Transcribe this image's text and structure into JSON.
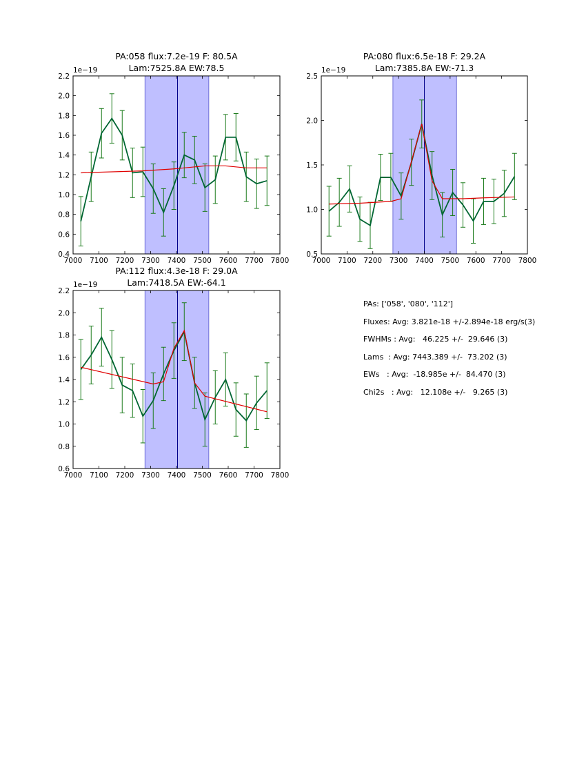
{
  "colors": {
    "data_line": "#006633",
    "errorbar": "#1a7a1a",
    "model_line": "#e00000",
    "band_fill": "#bfbfff",
    "band_edge": "#5555cc",
    "vline": "#00008b"
  },
  "chart_data": [
    {
      "type": "line",
      "title_line1": "PA:058 flux:7.2e-19 F: 80.5A",
      "title_line2": "Lam:7525.8A EW:78.5",
      "exponent_label": "1e−19",
      "xlim": [
        7000,
        7800
      ],
      "ylim": [
        0.4,
        2.2
      ],
      "xticks": [
        7000,
        7100,
        7200,
        7300,
        7400,
        7500,
        7600,
        7700,
        7800
      ],
      "yticks": [
        0.4,
        0.6,
        0.8,
        1.0,
        1.2,
        1.4,
        1.6,
        1.8,
        2.0,
        2.2
      ],
      "ytick_labels": [
        "0.4",
        "0.6",
        "0.8",
        "1.0",
        "1.2",
        "1.4",
        "1.6",
        "1.8",
        "2.0",
        "2.2"
      ],
      "band": [
        7278,
        7525
      ],
      "vline": 7404,
      "x": [
        7030,
        7070,
        7110,
        7150,
        7190,
        7230,
        7270,
        7310,
        7350,
        7390,
        7430,
        7470,
        7510,
        7550,
        7590,
        7630,
        7670,
        7710,
        7750
      ],
      "y": [
        0.73,
        1.18,
        1.62,
        1.77,
        1.6,
        1.22,
        1.23,
        1.06,
        0.82,
        1.09,
        1.4,
        1.35,
        1.07,
        1.15,
        1.58,
        1.58,
        1.18,
        1.11,
        1.14
      ],
      "yerr": [
        0.25,
        0.25,
        0.25,
        0.25,
        0.25,
        0.25,
        0.25,
        0.25,
        0.24,
        0.24,
        0.23,
        0.24,
        0.24,
        0.24,
        0.23,
        0.24,
        0.25,
        0.25,
        0.25
      ],
      "model_x": [
        7030,
        7270,
        7390,
        7510,
        7590,
        7670,
        7750
      ],
      "model_y": [
        1.22,
        1.24,
        1.26,
        1.29,
        1.29,
        1.27,
        1.27
      ]
    },
    {
      "type": "line",
      "title_line1": "PA:080 flux:6.5e-18 F: 29.2A",
      "title_line2": "Lam:7385.8A EW:-71.3",
      "exponent_label": "1e−19",
      "xlim": [
        7000,
        7800
      ],
      "ylim": [
        0.5,
        2.5
      ],
      "xticks": [
        7000,
        7100,
        7200,
        7300,
        7400,
        7500,
        7600,
        7700,
        7800
      ],
      "yticks": [
        0.5,
        1.0,
        1.5,
        2.0,
        2.5
      ],
      "ytick_labels": [
        "0.5",
        "1.0",
        "1.5",
        "2.0",
        "2.5"
      ],
      "band": [
        7278,
        7525
      ],
      "vline": 7400,
      "x": [
        7030,
        7070,
        7110,
        7150,
        7190,
        7230,
        7270,
        7310,
        7350,
        7390,
        7430,
        7470,
        7510,
        7550,
        7590,
        7630,
        7670,
        7710,
        7750
      ],
      "y": [
        0.98,
        1.08,
        1.23,
        0.89,
        0.82,
        1.36,
        1.36,
        1.15,
        1.53,
        1.96,
        1.38,
        0.94,
        1.19,
        1.05,
        0.87,
        1.09,
        1.09,
        1.18,
        1.37
      ],
      "yerr": [
        0.28,
        0.27,
        0.26,
        0.25,
        0.26,
        0.26,
        0.27,
        0.26,
        0.26,
        0.27,
        0.27,
        0.25,
        0.26,
        0.25,
        0.25,
        0.26,
        0.25,
        0.26,
        0.26
      ],
      "model_x": [
        7030,
        7150,
        7270,
        7310,
        7390,
        7430,
        7470,
        7550,
        7630,
        7750
      ],
      "model_y": [
        1.06,
        1.07,
        1.09,
        1.12,
        1.96,
        1.32,
        1.12,
        1.12,
        1.13,
        1.14
      ]
    },
    {
      "type": "line",
      "title_line1": "PA:112 flux:4.3e-18 F: 29.0A",
      "title_line2": "Lam:7418.5A EW:-64.1",
      "exponent_label": "1e−19",
      "xlim": [
        7000,
        7800
      ],
      "ylim": [
        0.6,
        2.2
      ],
      "xticks": [
        7000,
        7100,
        7200,
        7300,
        7400,
        7500,
        7600,
        7700,
        7800
      ],
      "yticks": [
        0.6,
        0.8,
        1.0,
        1.2,
        1.4,
        1.6,
        1.8,
        2.0,
        2.2
      ],
      "ytick_labels": [
        "0.6",
        "0.8",
        "1.0",
        "1.2",
        "1.4",
        "1.6",
        "1.8",
        "2.0",
        "2.2"
      ],
      "band": [
        7278,
        7525
      ],
      "vline": 7404,
      "x": [
        7030,
        7070,
        7110,
        7150,
        7190,
        7230,
        7270,
        7310,
        7350,
        7390,
        7430,
        7470,
        7510,
        7550,
        7590,
        7630,
        7670,
        7710,
        7750
      ],
      "y": [
        1.49,
        1.62,
        1.78,
        1.58,
        1.35,
        1.3,
        1.07,
        1.21,
        1.45,
        1.66,
        1.83,
        1.37,
        1.04,
        1.24,
        1.4,
        1.13,
        1.03,
        1.19,
        1.3
      ],
      "yerr": [
        0.27,
        0.26,
        0.26,
        0.26,
        0.25,
        0.24,
        0.24,
        0.25,
        0.24,
        0.25,
        0.26,
        0.23,
        0.24,
        0.24,
        0.24,
        0.24,
        0.24,
        0.24,
        0.25
      ],
      "model_x": [
        7030,
        7310,
        7350,
        7390,
        7430,
        7470,
        7510,
        7750
      ],
      "model_y": [
        1.51,
        1.36,
        1.38,
        1.68,
        1.84,
        1.37,
        1.25,
        1.11
      ]
    }
  ],
  "summary": {
    "line1": "PAs: ['058', '080', '112']",
    "line2": "Fluxes: Avg: 3.821e-18 +/-2.894e-18 erg/s(3)",
    "line3": "FWHMs : Avg:   46.225 +/-  29.646 (3)",
    "line4": "Lams  : Avg: 7443.389 +/-  73.202 (3)",
    "line5": "EWs   : Avg:  -18.985e +/-  84.470 (3)",
    "line6": "Chi2s   : Avg:   12.108e +/-   9.265 (3)"
  }
}
